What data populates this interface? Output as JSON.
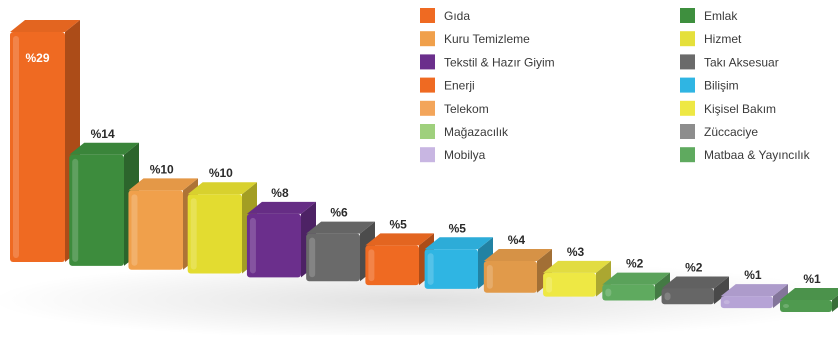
{
  "chart_data": {
    "type": "bar",
    "title": "",
    "xlabel": "",
    "ylabel": "",
    "ylim": [
      0,
      29
    ],
    "grid": false,
    "legend_position": "top-right",
    "legend": [
      {
        "name": "Gıda",
        "color": "#ef6a22"
      },
      {
        "name": "Kuru Temizleme",
        "color": "#f0a04b"
      },
      {
        "name": "Tekstil & Hazır Giyim",
        "color": "#6b2f8c"
      },
      {
        "name": "Enerji",
        "color": "#ef6a22"
      },
      {
        "name": "Telekom",
        "color": "#f3a55a"
      },
      {
        "name": "Mağazacılık",
        "color": "#9fd07d"
      },
      {
        "name": "Mobilya",
        "color": "#c8b6e2"
      },
      {
        "name": "Emlak",
        "color": "#3e8f3e"
      },
      {
        "name": "Hizmet",
        "color": "#e5e03b"
      },
      {
        "name": "Takı Aksesuar",
        "color": "#6a6a6a"
      },
      {
        "name": "Bilişim",
        "color": "#2fb5e3"
      },
      {
        "name": "Kişisel Bakım",
        "color": "#eee844"
      },
      {
        "name": "Züccaciye",
        "color": "#8d8d8d"
      },
      {
        "name": "Matbaa & Yayıncılık",
        "color": "#5faa5f"
      }
    ],
    "bars": [
      {
        "label": "%29",
        "value": 29,
        "color": "#ef6a22"
      },
      {
        "label": "%14",
        "value": 14,
        "color": "#3d8c3d"
      },
      {
        "label": "%10",
        "value": 10,
        "color": "#f0a04b"
      },
      {
        "label": "%10",
        "value": 10,
        "color": "#e3dc30"
      },
      {
        "label": "%8",
        "value": 8,
        "color": "#6b2f8c"
      },
      {
        "label": "%6",
        "value": 6,
        "color": "#6a6a6a"
      },
      {
        "label": "%5",
        "value": 5,
        "color": "#ef6a22"
      },
      {
        "label": "%5",
        "value": 5,
        "color": "#2fb5e3"
      },
      {
        "label": "%4",
        "value": 4,
        "color": "#e19a4a"
      },
      {
        "label": "%3",
        "value": 3,
        "color": "#eee844"
      },
      {
        "label": "%2",
        "value": 2,
        "color": "#5faa5f"
      },
      {
        "label": "%2",
        "value": 2,
        "color": "#666666"
      },
      {
        "label": "%1",
        "value": 1,
        "color": "#b6a3d6"
      },
      {
        "label": "%1",
        "value": 1,
        "color": "#4f9a4f"
      }
    ]
  }
}
